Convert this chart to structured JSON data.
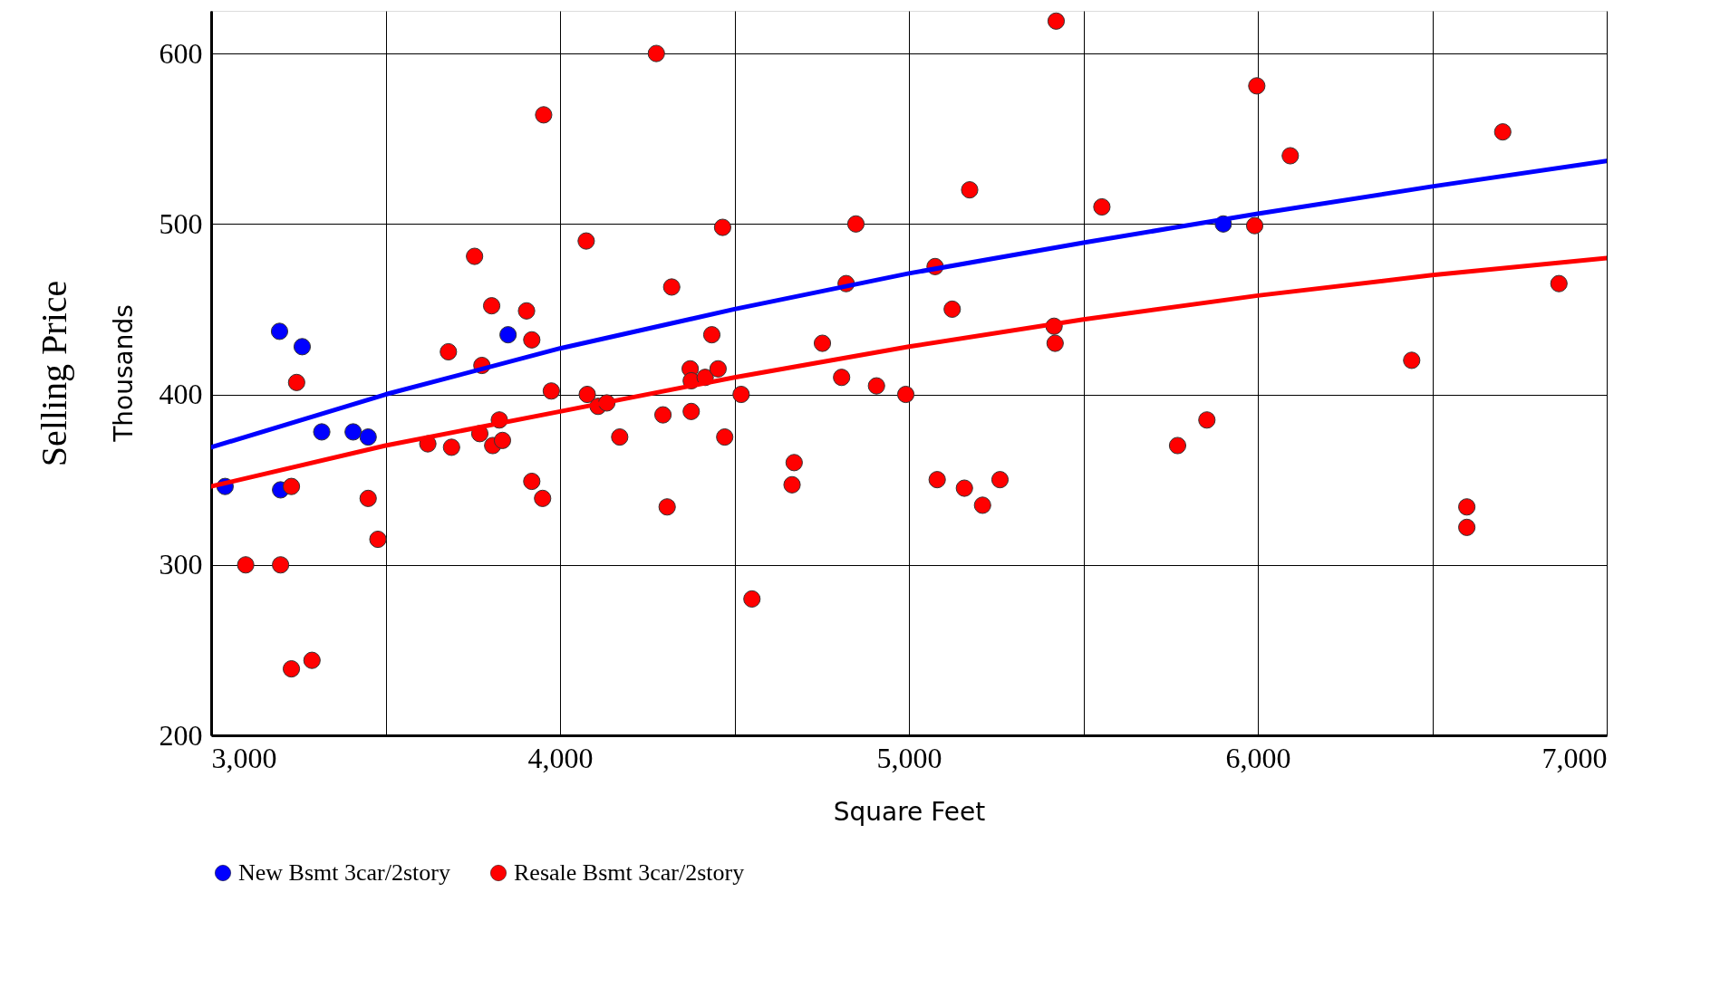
{
  "chart_data": {
    "type": "scatter",
    "xlabel": "Square Feet",
    "ylabel": "Selling Price",
    "annotations": [
      "Thousands"
    ],
    "xlim": [
      3000,
      7000
    ],
    "ylim": [
      200,
      625
    ],
    "xticks": [
      {
        "value": 3000,
        "label": "3,000"
      },
      {
        "value": 3500,
        "label": null
      },
      {
        "value": 4000,
        "label": "4,000"
      },
      {
        "value": 4500,
        "label": null
      },
      {
        "value": 5000,
        "label": "5,000"
      },
      {
        "value": 5500,
        "label": null
      },
      {
        "value": 6000,
        "label": "6,000"
      },
      {
        "value": 6500,
        "label": null
      },
      {
        "value": 7000,
        "label": "7,000"
      }
    ],
    "yticks": [
      200,
      300,
      400,
      500,
      600
    ],
    "grid": true,
    "legend": "bottom",
    "marker": "circle",
    "series": [
      {
        "name": "New Bsmt 3car/2story",
        "color": "#0000ff",
        "x": [
          3040,
          3196,
          3261,
          3199,
          3317,
          3407,
          3450,
          3851,
          5901
        ],
        "values": [
          346,
          437,
          428,
          344,
          378,
          378,
          375,
          435,
          500
        ]
      },
      {
        "name": "Resale Bsmt 3car/2story",
        "color": "#ff0000",
        "x": [
          3099,
          3199,
          3230,
          3289,
          3230,
          3245,
          3450,
          3478,
          3621,
          3680,
          3689,
          3755,
          3770,
          3776,
          3804,
          3807,
          3826,
          3835,
          3904,
          3919,
          3919,
          3953,
          3950,
          3975,
          4075,
          4078,
          4109,
          4134,
          4171,
          4276,
          4295,
          4307,
          4320,
          4373,
          4376,
          4376,
          4416,
          4435,
          4453,
          4466,
          4472,
          4519,
          4550,
          4665,
          4671,
          4752,
          4807,
          4820,
          4848,
          4907,
          4991,
          5075,
          5081,
          5124,
          5159,
          5174,
          5211,
          5261,
          5416,
          5419,
          5422,
          5553,
          5770,
          5854,
          5991,
          5997,
          6093,
          6441,
          6599,
          6599,
          6702,
          6863
        ],
        "values": [
          300,
          300,
          239,
          244,
          346,
          407,
          339,
          315,
          371,
          425,
          369,
          481,
          377,
          417,
          452,
          370,
          385,
          373,
          449,
          432,
          349,
          564,
          339,
          402,
          490,
          400,
          393,
          395,
          375,
          600,
          388,
          334,
          463,
          415,
          390,
          408,
          410,
          435,
          415,
          498,
          375,
          400,
          280,
          347,
          360,
          430,
          410,
          465,
          500,
          405,
          400,
          475,
          350,
          450,
          345,
          520,
          335,
          350,
          440,
          430,
          619,
          510,
          370,
          385,
          499,
          581,
          540,
          420,
          334,
          322,
          554,
          465
        ]
      },
      {
        "type": "line",
        "marker": "none",
        "color": "#0000ff",
        "x": [
          3000,
          3500,
          4000,
          4500,
          5000,
          5500,
          6000,
          6500,
          7000
        ],
        "values": [
          369,
          400,
          427,
          450,
          471,
          489,
          506,
          522,
          537
        ]
      },
      {
        "type": "line",
        "marker": "none",
        "color": "#ff0000",
        "x": [
          3000,
          3500,
          4000,
          4500,
          5000,
          5500,
          6000,
          6500,
          7000
        ],
        "values": [
          346,
          370,
          390,
          410,
          428,
          444,
          458,
          470,
          480
        ]
      }
    ]
  }
}
